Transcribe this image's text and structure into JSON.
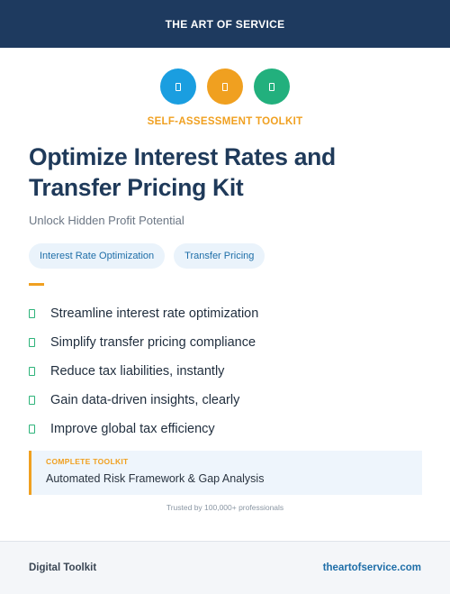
{
  "header": {
    "brand": "THE ART OF SERVICE"
  },
  "icons": [
    {
      "name": "document-icon",
      "color": "#1a9ee0"
    },
    {
      "name": "document-icon",
      "color": "#f0a020"
    },
    {
      "name": "document-icon",
      "color": "#22b07d"
    }
  ],
  "hero": {
    "kicker": "SELF-ASSESSMENT TOOLKIT",
    "kicker_color": "#f0a020",
    "title": "Optimize Interest Rates and Transfer Pricing Kit",
    "subtitle": "Unlock Hidden Profit Potential"
  },
  "tags": [
    {
      "label": "Interest Rate Optimization"
    },
    {
      "label": "Transfer Pricing"
    }
  ],
  "tag_bg": "#eaf3fb",
  "accent_color": "#f0a020",
  "benefits": [
    {
      "text": "Streamline interest rate optimization",
      "icon": "check-icon"
    },
    {
      "text": "Simplify transfer pricing compliance",
      "icon": "check-icon"
    },
    {
      "text": "Reduce tax liabilities, instantly",
      "icon": "check-icon"
    },
    {
      "text": "Gain data-driven insights, clearly",
      "icon": "check-icon"
    },
    {
      "text": "Improve global tax efficiency",
      "icon": "check-icon"
    }
  ],
  "callout": {
    "label": "COMPLETE TOOLKIT",
    "text": "Automated Risk Framework & Gap Analysis"
  },
  "trust": "Trusted by 100,000+ professionals",
  "footer": {
    "left": "Digital Toolkit",
    "right": "theartofservice.com"
  }
}
